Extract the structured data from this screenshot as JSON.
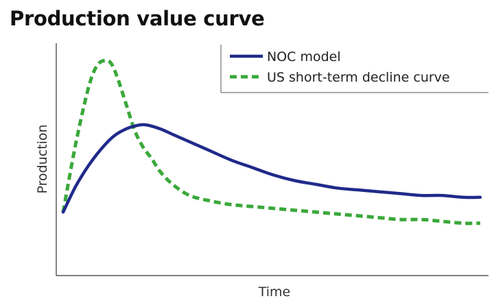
{
  "chart_data": {
    "type": "line",
    "title": "Production value curve",
    "xlabel": "Time",
    "ylabel": "Production",
    "x_ticks_shown": false,
    "y_ticks_shown": false,
    "grid": false,
    "legend_position": "top-right",
    "xlim": [
      0,
      100
    ],
    "ylim": [
      0,
      100
    ],
    "series": [
      {
        "name": "NOC model",
        "color": "#1f2a8a",
        "line_style": "solid",
        "x": [
          0,
          3,
          6,
          9,
          12,
          15,
          18,
          20,
          23,
          26,
          30,
          35,
          40,
          45,
          50,
          55,
          60,
          65,
          70,
          75,
          80,
          85,
          90,
          95,
          99
        ],
        "y": [
          18,
          32,
          43,
          52,
          59,
          63,
          65,
          65,
          63,
          60,
          56,
          51,
          46,
          42,
          38,
          35,
          33,
          31,
          30,
          29,
          28,
          27,
          27,
          26,
          26
        ]
      },
      {
        "name": "US short-term decline curve",
        "color": "#3aa83a",
        "line_style": "dashed",
        "x": [
          0,
          3,
          6,
          8,
          10,
          11.5,
          13,
          15,
          17,
          19,
          21,
          23,
          26,
          30,
          35,
          40,
          45,
          50,
          55,
          60,
          65,
          70,
          75,
          80,
          85,
          90,
          95,
          99
        ],
        "y": [
          18,
          55,
          85,
          97,
          100,
          98,
          90,
          76,
          62,
          53,
          47,
          40,
          33,
          27,
          24,
          22,
          21,
          20,
          19,
          18,
          17,
          16,
          15,
          14,
          14,
          13,
          12,
          12
        ]
      }
    ]
  }
}
